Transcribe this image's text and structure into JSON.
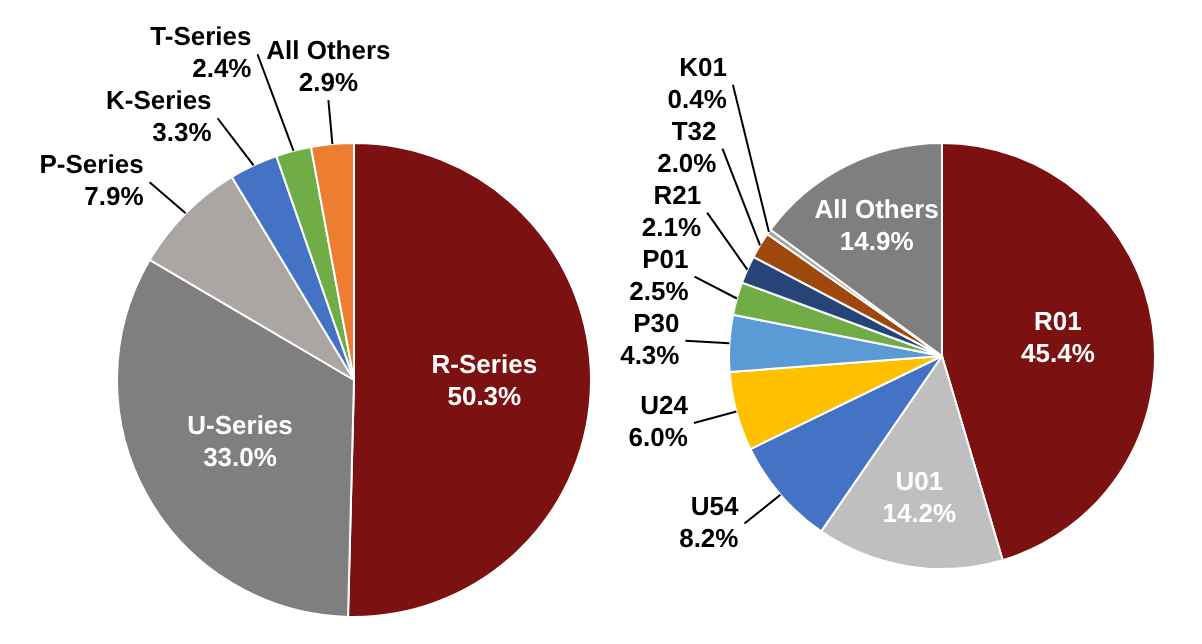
{
  "chart_data": [
    {
      "type": "pie",
      "categories": [
        "R-Series",
        "U-Series",
        "P-Series",
        "K-Series",
        "T-Series",
        "All Others"
      ],
      "values": [
        50.3,
        33.0,
        7.9,
        3.3,
        2.4,
        2.9
      ],
      "value_labels": [
        "50.3%",
        "33.0%",
        "7.9%",
        "3.3%",
        "2.4%",
        "2.9%"
      ],
      "colors": [
        "#7b1111",
        "#7f7f7f",
        "#aba5a3",
        "#4472c4",
        "#70ad47",
        "#ed7d31"
      ]
    },
    {
      "type": "pie",
      "categories": [
        "R01",
        "U01",
        "U54",
        "U24",
        "P30",
        "P01",
        "R21",
        "T32",
        "K01",
        "All Others"
      ],
      "values": [
        45.4,
        14.2,
        8.2,
        6.0,
        4.3,
        2.5,
        2.1,
        2.0,
        0.4,
        14.9
      ],
      "value_labels": [
        "45.4%",
        "14.2%",
        "8.2%",
        "6.0%",
        "4.3%",
        "2.5%",
        "2.1%",
        "2.0%",
        "0.4%",
        "14.9%"
      ],
      "colors": [
        "#7b1111",
        "#bfbfbf",
        "#4472c4",
        "#ffc000",
        "#5b9bd5",
        "#70ad47",
        "#264478",
        "#9e480e",
        "#a5a5a5",
        "#7f7f7f"
      ]
    }
  ]
}
